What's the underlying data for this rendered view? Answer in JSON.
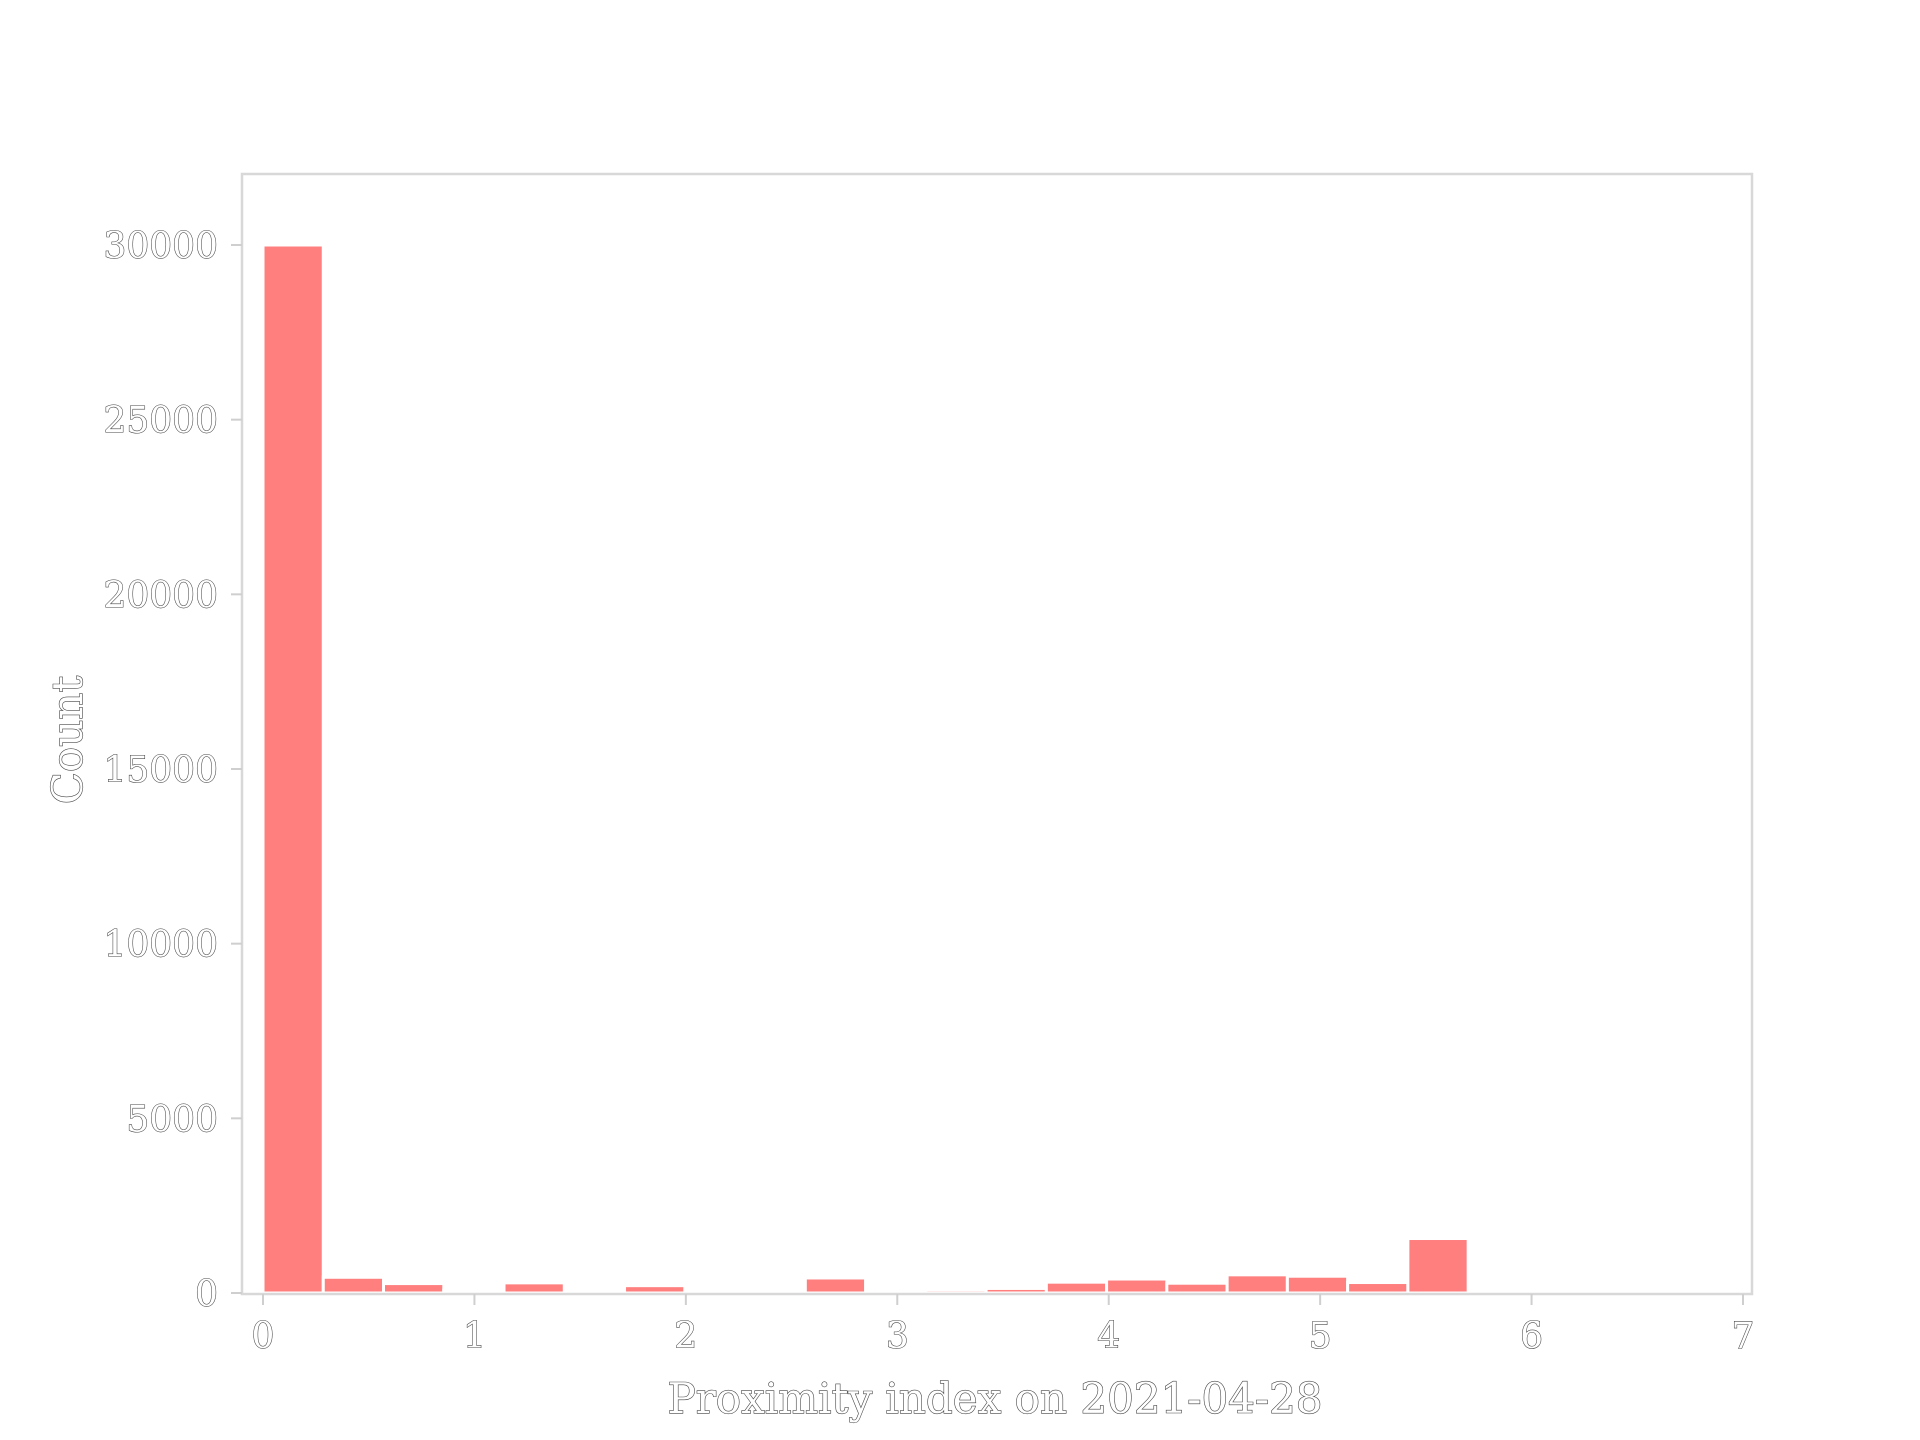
{
  "chart_data": {
    "type": "bar",
    "xlabel": "Proximity index on 2021-04-28",
    "ylabel": "Count",
    "xlim": [
      0,
      7
    ],
    "ylim": [
      0,
      32000
    ],
    "x_ticks": [
      0,
      1,
      2,
      3,
      4,
      5,
      6,
      7
    ],
    "y_ticks": [
      0,
      5000,
      10000,
      15000,
      20000,
      25000,
      30000
    ],
    "grid": false,
    "bar_color": "#ff7f7f",
    "bins": [
      {
        "x0": 0.0,
        "x1": 0.285,
        "count": 30000
      },
      {
        "x0": 0.285,
        "x1": 0.57,
        "count": 450
      },
      {
        "x0": 0.57,
        "x1": 0.855,
        "count": 270
      },
      {
        "x0": 0.855,
        "x1": 1.14,
        "count": 80
      },
      {
        "x0": 1.14,
        "x1": 1.425,
        "count": 290
      },
      {
        "x0": 1.425,
        "x1": 1.71,
        "count": 0
      },
      {
        "x0": 1.71,
        "x1": 1.995,
        "count": 210
      },
      {
        "x0": 1.995,
        "x1": 2.28,
        "count": 0
      },
      {
        "x0": 2.28,
        "x1": 2.565,
        "count": 70
      },
      {
        "x0": 2.565,
        "x1": 2.85,
        "count": 430
      },
      {
        "x0": 2.85,
        "x1": 3.135,
        "count": 0
      },
      {
        "x0": 3.135,
        "x1": 3.42,
        "count": 90
      },
      {
        "x0": 3.42,
        "x1": 3.705,
        "count": 130
      },
      {
        "x0": 3.705,
        "x1": 3.99,
        "count": 310
      },
      {
        "x0": 3.99,
        "x1": 4.275,
        "count": 400
      },
      {
        "x0": 4.275,
        "x1": 4.56,
        "count": 280
      },
      {
        "x0": 4.56,
        "x1": 4.845,
        "count": 520
      },
      {
        "x0": 4.845,
        "x1": 5.13,
        "count": 480
      },
      {
        "x0": 5.13,
        "x1": 5.415,
        "count": 300
      },
      {
        "x0": 5.415,
        "x1": 5.7,
        "count": 1560
      }
    ]
  }
}
